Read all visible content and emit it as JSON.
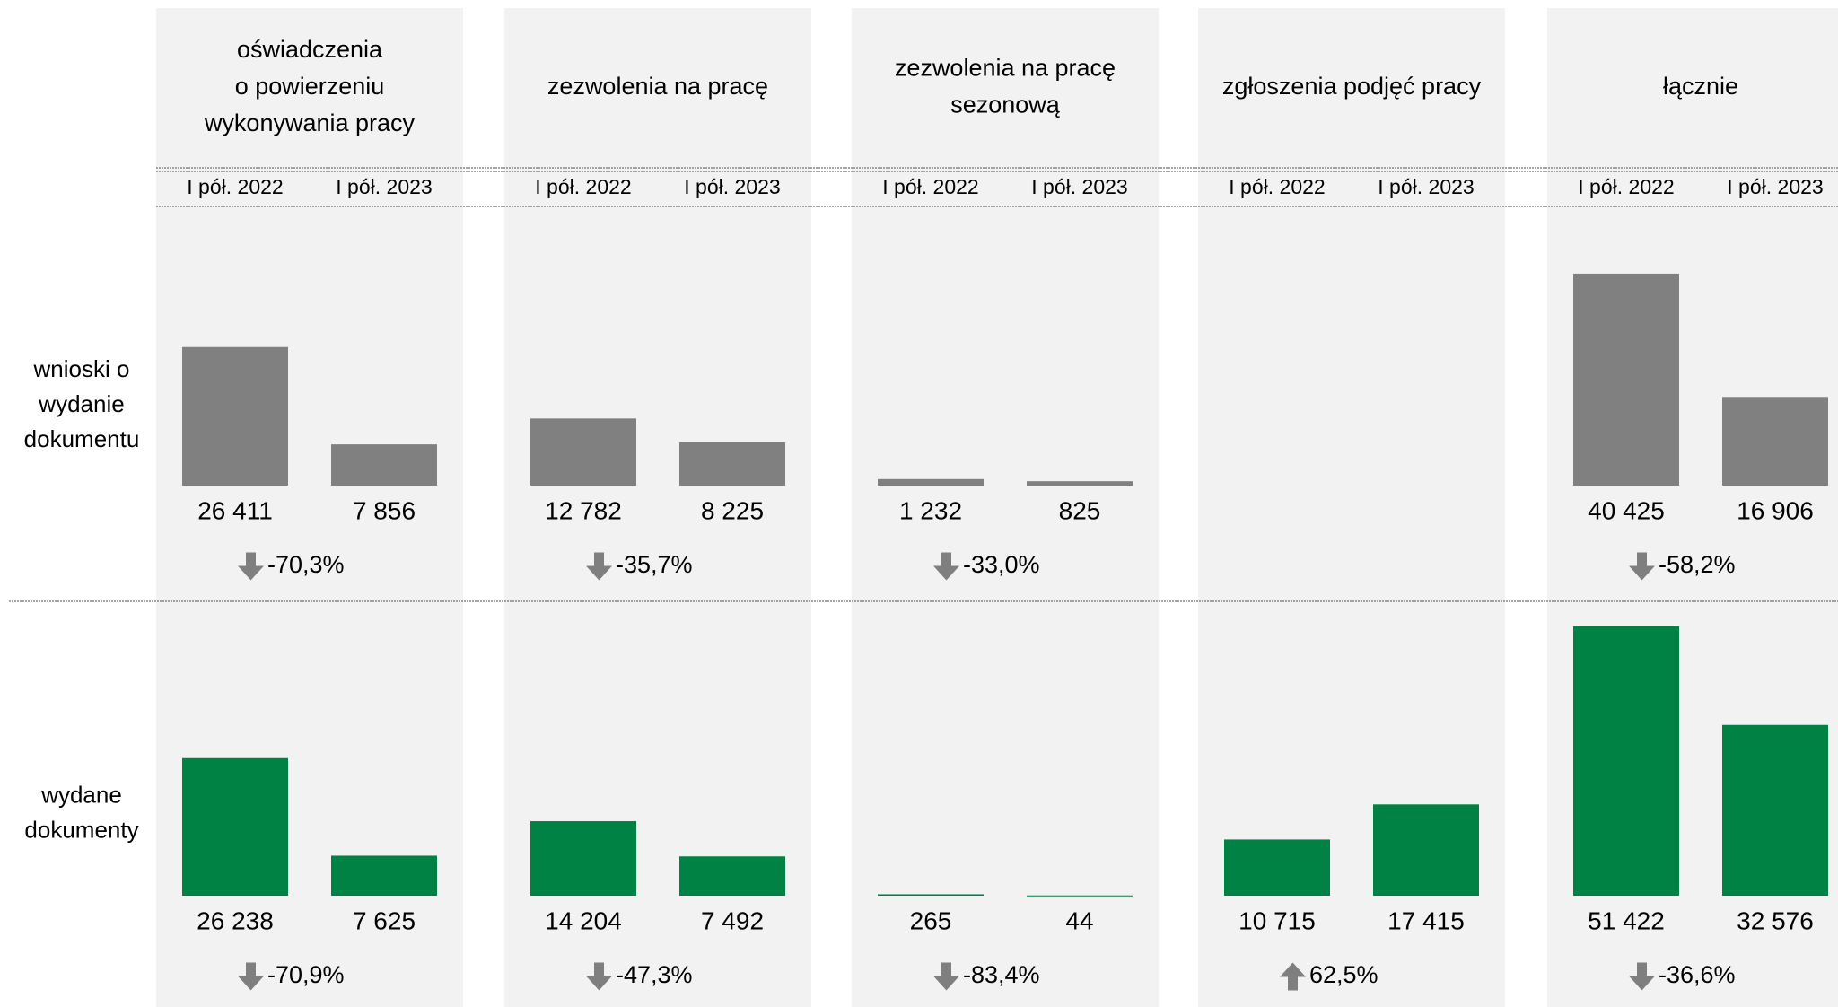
{
  "chart_data": {
    "type": "bar",
    "columns": [
      [
        "oświadczenia",
        "o powierzeniu",
        "wykonywania pracy"
      ],
      [
        "zezwolenia na pracę"
      ],
      [
        "zezwolenia na pracę",
        "sezonową"
      ],
      [
        "zgłoszenia podjęć pracy"
      ],
      [
        "łącznie"
      ]
    ],
    "periods": [
      "I pół. 2022",
      "I pół. 2023"
    ],
    "rows": [
      {
        "name": [
          "wnioski o",
          "wydanie",
          "dokumentu"
        ],
        "color": "#808080",
        "values": [
          [
            26411,
            7856
          ],
          [
            12782,
            8225
          ],
          [
            1232,
            825
          ],
          [
            null,
            null
          ],
          [
            40425,
            16906
          ]
        ],
        "value_labels": [
          [
            "26 411",
            "7 856"
          ],
          [
            "12 782",
            "8 225"
          ],
          [
            "1 232",
            "825"
          ],
          [
            null,
            null
          ],
          [
            "40 425",
            "16 906"
          ]
        ],
        "changes": [
          -70.3,
          -35.7,
          -33.0,
          null,
          -58.2
        ],
        "change_labels": [
          "-70,3%",
          "-35,7%",
          "-33,0%",
          null,
          "-58,2%"
        ]
      },
      {
        "name": [
          "wydane",
          "dokumenty"
        ],
        "color": "#008244",
        "values": [
          [
            26238,
            7625
          ],
          [
            14204,
            7492
          ],
          [
            265,
            44
          ],
          [
            10715,
            17415
          ],
          [
            51422,
            32576
          ]
        ],
        "value_labels": [
          [
            "26 238",
            "7 625"
          ],
          [
            "14 204",
            "7 492"
          ],
          [
            "265",
            "44"
          ],
          [
            "10 715",
            "17 415"
          ],
          [
            "51 422",
            "32 576"
          ]
        ],
        "changes": [
          -70.9,
          -47.3,
          -83.4,
          62.5,
          -36.6
        ],
        "change_labels": [
          "-70,9%",
          "-47,3%",
          "-83,4%",
          "62,5%",
          "-36,6%"
        ]
      }
    ]
  }
}
